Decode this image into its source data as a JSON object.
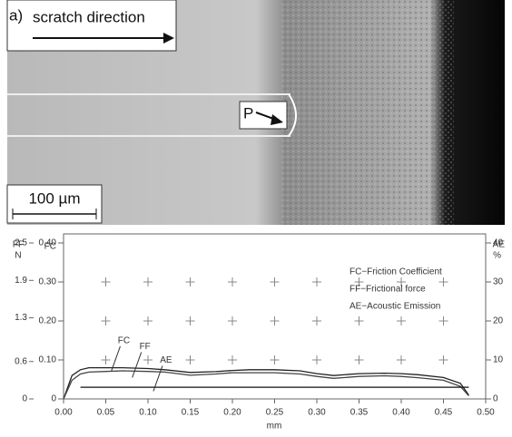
{
  "micrograph": {
    "panel_label": "a)",
    "direction_label": "scratch direction",
    "point_label": "P",
    "scale_bar": "100 µm"
  },
  "chart_data": {
    "type": "line",
    "x_label": "mm",
    "x": [
      0,
      0.01,
      0.02,
      0.03,
      0.05,
      0.07,
      0.1,
      0.12,
      0.15,
      0.18,
      0.2,
      0.22,
      0.25,
      0.28,
      0.3,
      0.32,
      0.35,
      0.38,
      0.4,
      0.42,
      0.45,
      0.47,
      0.48
    ],
    "xlim": [
      0,
      0.5
    ],
    "xticks": [
      {
        "value": 0,
        "label": "0.00"
      },
      {
        "value": 0.05,
        "label": "0.05"
      },
      {
        "value": 0.1,
        "label": "0.10"
      },
      {
        "value": 0.15,
        "label": "0.15"
      },
      {
        "value": 0.2,
        "label": "0.20"
      },
      {
        "value": 0.25,
        "label": "0.25"
      },
      {
        "value": 0.3,
        "label": "0.30"
      },
      {
        "value": 0.35,
        "label": "0.35"
      },
      {
        "value": 0.4,
        "label": "0.40"
      },
      {
        "value": 0.45,
        "label": "0.45"
      },
      {
        "value": 0.5,
        "label": "0.50"
      }
    ],
    "y_label": "FC",
    "ylim": [
      0,
      0.4
    ],
    "yticks": [
      0,
      {
        "value": 0.1,
        "label": "0.10"
      },
      {
        "value": 0.2,
        "label": "0.20"
      },
      {
        "value": 0.3,
        "label": "0.30"
      },
      {
        "value": 0.4,
        "label": "0.40"
      }
    ],
    "ff_axis": {
      "label": "FF",
      "unit": "N",
      "ylim": [
        0,
        2.5
      ],
      "yticks": [
        0,
        0.6,
        1.3,
        1.9,
        2.5
      ]
    },
    "y2_label": "AE",
    "y2_unit": "%",
    "y2lim": [
      0,
      40
    ],
    "y2ticks": [
      0,
      10,
      20,
      30,
      40
    ],
    "grid": true,
    "series": [
      {
        "name": "FC",
        "legend_label": "FC−Friction Coefficient",
        "axis": "y",
        "color": "#222222",
        "values": [
          0,
          0.06,
          0.075,
          0.08,
          0.08,
          0.08,
          0.078,
          0.075,
          0.068,
          0.07,
          0.073,
          0.075,
          0.075,
          0.072,
          0.065,
          0.06,
          0.065,
          0.066,
          0.065,
          0.062,
          0.055,
          0.04,
          0.01
        ]
      },
      {
        "name": "FF",
        "legend_label": "FF−Frictional force",
        "axis": "ff",
        "color": "#444444",
        "values": [
          0,
          0.3,
          0.4,
          0.43,
          0.44,
          0.45,
          0.44,
          0.43,
          0.38,
          0.4,
          0.42,
          0.42,
          0.42,
          0.4,
          0.36,
          0.33,
          0.36,
          0.37,
          0.36,
          0.34,
          0.3,
          0.2,
          0.05
        ]
      },
      {
        "name": "AE",
        "legend_label": "AE−Acoustic Emission",
        "axis": "y2",
        "color": "#111111",
        "values": [
          null,
          null,
          3,
          3,
          3,
          3,
          3,
          3,
          3,
          3,
          3,
          3,
          3,
          3,
          3,
          3,
          3,
          3,
          3,
          3,
          3,
          3,
          3
        ]
      }
    ]
  }
}
